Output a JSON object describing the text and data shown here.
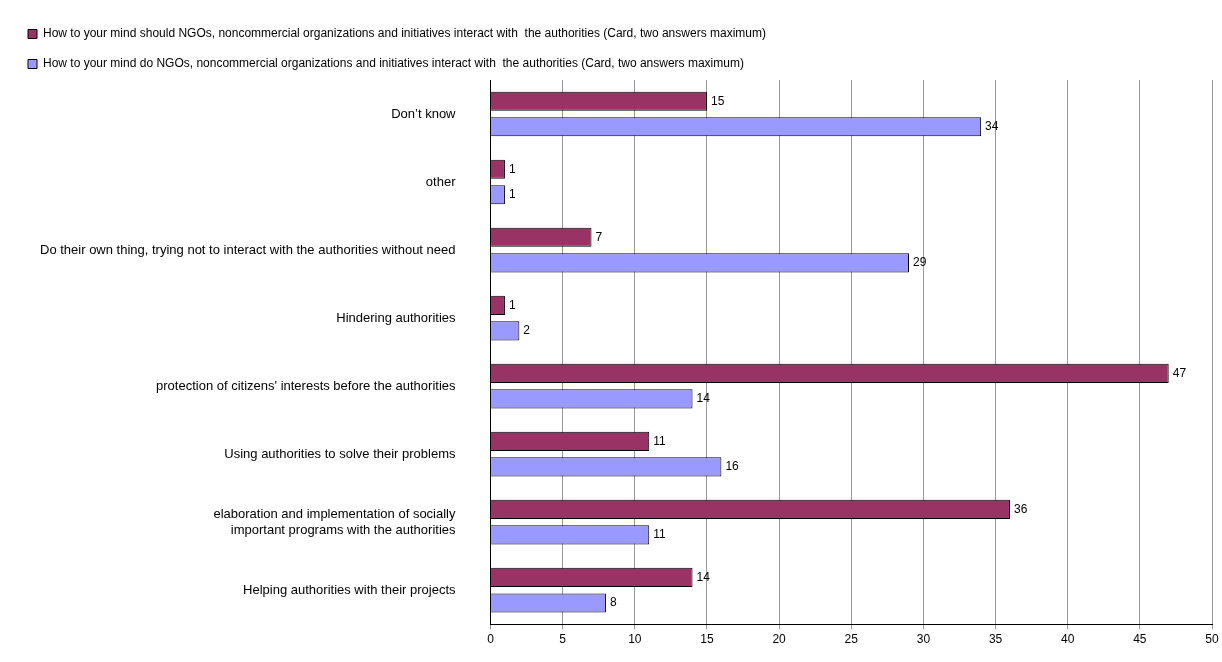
{
  "chart_data": {
    "type": "bar",
    "orientation": "horizontal",
    "categories": [
      "Don’t know",
      "other",
      "Do their own thing, trying not to interact with the authorities without need",
      "Hindering authorities",
      "protection of citizens' interests before the authorities",
      "Using authorities to solve their problems",
      "elaboration and implementation of socially important programs with the authorities",
      "Helping authorities with their projects"
    ],
    "series": [
      {
        "name": "How to your mind should NGOs, noncommercial organizations and initiatives interact with  the authorities (Card, two answers maximum)",
        "color": "#993366",
        "values": [
          15,
          1,
          7,
          1,
          47,
          11,
          36,
          14
        ]
      },
      {
        "name": "How to your mind do NGOs, noncommercial organizations and initiatives interact with  the authorities (Card, two answers maximum)",
        "color": "#9999ff",
        "values": [
          34,
          1,
          29,
          2,
          14,
          16,
          11,
          8
        ]
      }
    ],
    "xlim": [
      0,
      50
    ],
    "xticks": [
      0,
      5,
      10,
      15,
      20,
      25,
      30,
      35,
      40,
      45,
      50
    ],
    "grid": "x",
    "legend": "top left",
    "data_labels": true
  }
}
